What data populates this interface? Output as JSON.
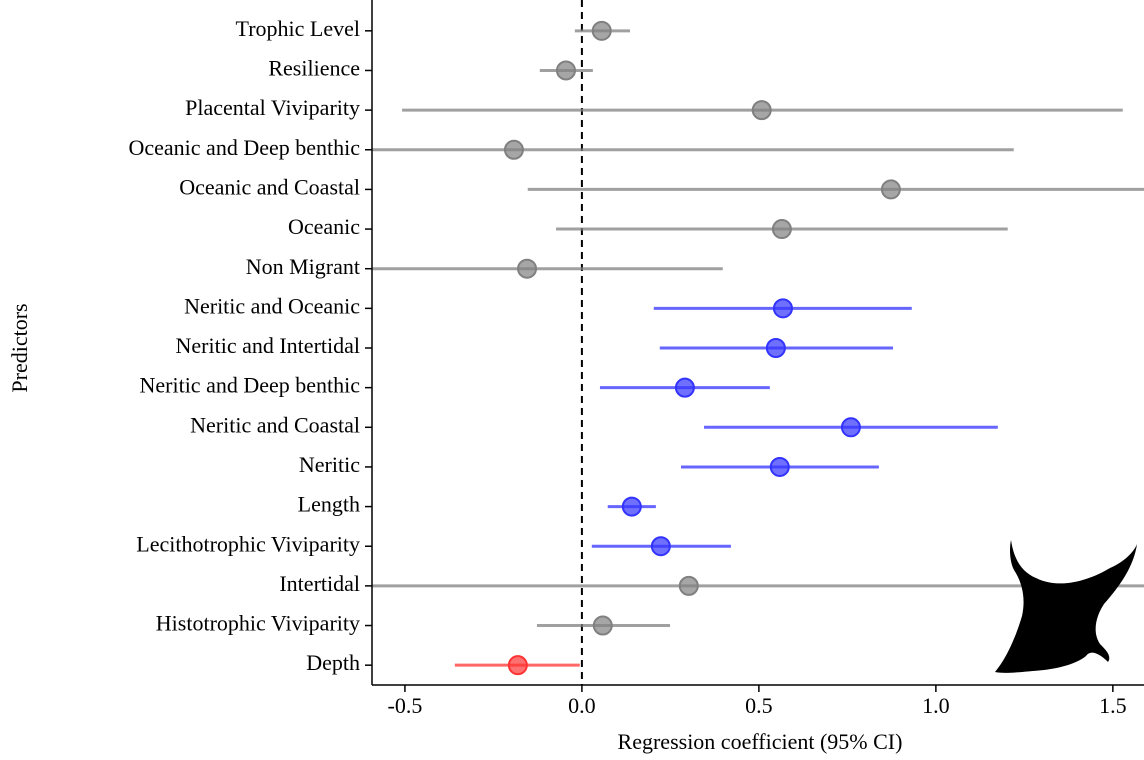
{
  "chart_data": {
    "type": "forest",
    "x_label": "Regression coefficient (95% CI)",
    "y_label": "Predictors",
    "categories": [
      "Trophic Level",
      "Resilience",
      "Placental Viviparity",
      "Oceanic and Deep benthic",
      "Oceanic and Coastal",
      "Oceanic",
      "Non Migrant",
      "Neritic and Oceanic",
      "Neritic and Intertidal",
      "Neritic and Deep benthic",
      "Neritic and Coastal",
      "Neritic",
      "Length",
      "Lecithotrophic Viviparity",
      "Intertidal",
      "Histotrophic Viviparity",
      "Depth"
    ],
    "estimates": [
      0.056,
      -0.045,
      0.508,
      -0.192,
      0.873,
      0.565,
      -0.155,
      0.568,
      0.548,
      0.291,
      0.76,
      0.559,
      0.141,
      0.223,
      0.302,
      0.059,
      -0.181
    ],
    "lower": [
      -0.02,
      -0.119,
      -0.508,
      -0.65,
      -0.153,
      -0.073,
      -0.62,
      0.203,
      0.22,
      0.051,
      0.345,
      0.28,
      0.073,
      0.028,
      -0.65,
      -0.127,
      -0.359
    ],
    "upper": [
      0.136,
      0.031,
      1.528,
      1.22,
      1.7,
      1.203,
      0.398,
      0.932,
      0.879,
      0.531,
      1.175,
      0.839,
      0.209,
      0.421,
      1.65,
      0.249,
      -0.006
    ],
    "colors": [
      "#808080",
      "#808080",
      "#808080",
      "#808080",
      "#808080",
      "#808080",
      "#808080",
      "#3333ff",
      "#3333ff",
      "#3333ff",
      "#3333ff",
      "#3333ff",
      "#3333ff",
      "#3333ff",
      "#808080",
      "#808080",
      "#ff3333"
    ],
    "xlim": [
      -0.593,
      1.588
    ],
    "xticks": [
      -0.5,
      {
        "value": 0,
        "label": "0.0"
      },
      0.5,
      {
        "value": 1,
        "label": "1.0"
      },
      1.5
    ]
  }
}
